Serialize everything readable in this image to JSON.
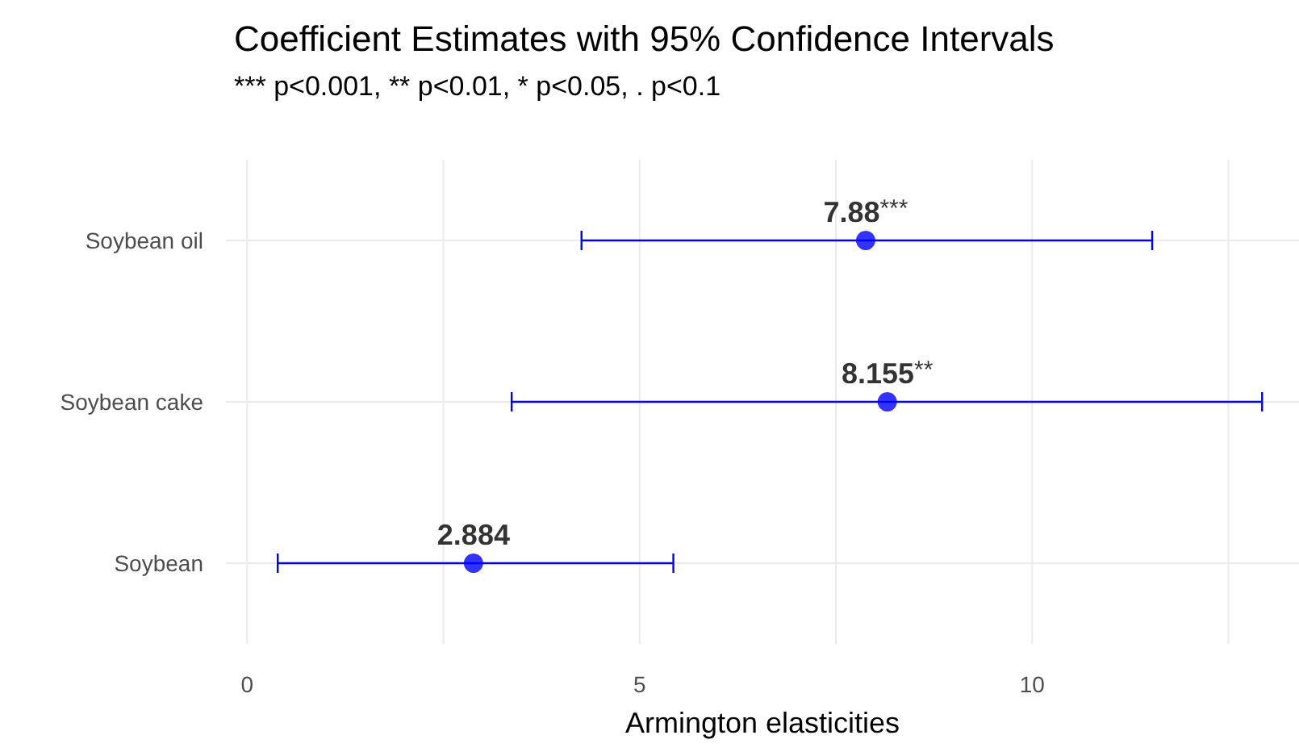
{
  "chart_data": {
    "type": "scatter",
    "orientation": "horizontal",
    "title": "Coefficient Estimates with 95% Confidence Intervals",
    "subtitle": "*** p<0.001, ** p<0.01, * p<0.05, . p<0.1",
    "xlabel": "Armington elasticities",
    "categories": [
      "Soybean oil",
      "Soybean cake",
      "Soybean"
    ],
    "series": [
      {
        "color": "#0000ff",
        "values": [
          7.88,
          8.155,
          2.884
        ],
        "errors": [
          [
            4.26,
            11.53
          ],
          [
            3.37,
            12.93
          ],
          [
            0.39,
            5.43
          ]
        ],
        "value_labels": [
          "7.88***",
          "8.155**",
          "2.884"
        ]
      }
    ],
    "xlim": [
      -0.27,
      13.4
    ],
    "xticks": [
      0,
      {
        "value": 2.5,
        "label": null
      },
      5,
      {
        "value": 7.5,
        "label": null
      },
      10,
      {
        "value": 12.5,
        "label": null
      }
    ],
    "grid": true,
    "marker": "circle"
  }
}
